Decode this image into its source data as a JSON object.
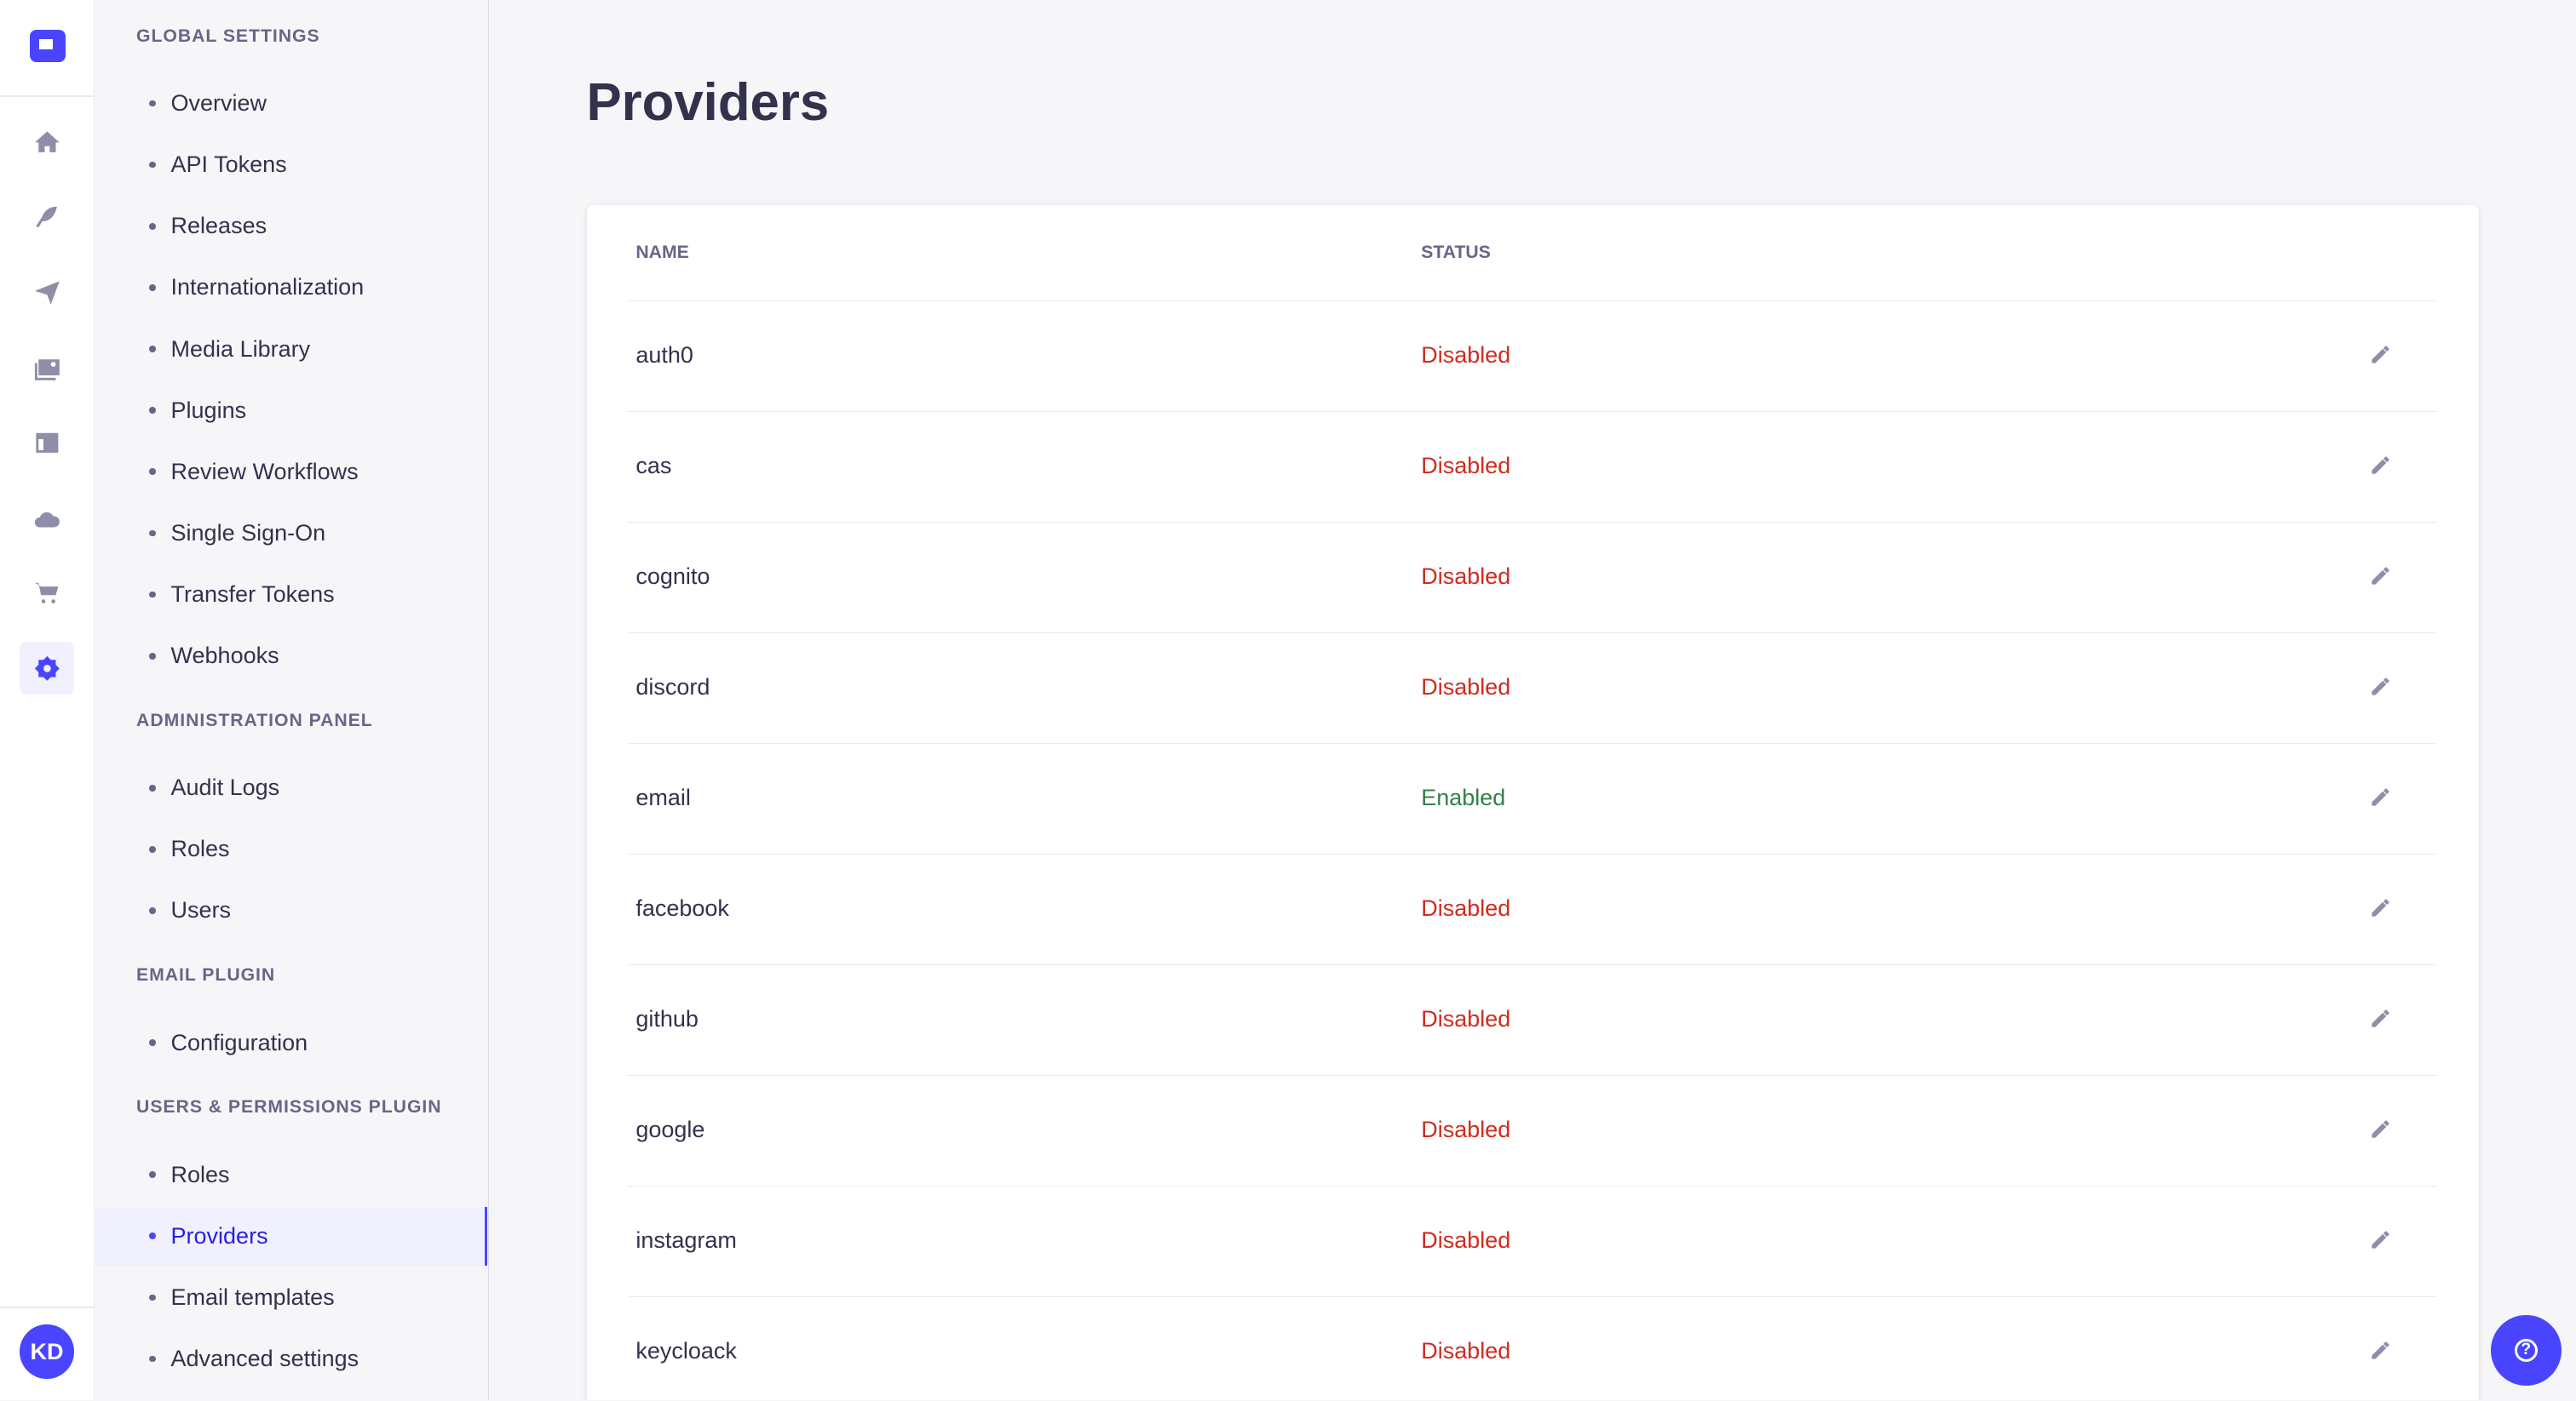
{
  "rail": {
    "avatar_initials": "KD",
    "icons": [
      "home-icon",
      "feather-icon",
      "paper-plane-icon",
      "images-icon",
      "layout-icon",
      "cloud-icon",
      "cart-icon",
      "gear-icon"
    ],
    "active": "gear-icon"
  },
  "subnav": {
    "sections": [
      {
        "title": "GLOBAL SETTINGS",
        "items": [
          "Overview",
          "API Tokens",
          "Releases",
          "Internationalization",
          "Media Library",
          "Plugins",
          "Review Workflows",
          "Single Sign-On",
          "Transfer Tokens",
          "Webhooks"
        ]
      },
      {
        "title": "ADMINISTRATION PANEL",
        "items": [
          "Audit Logs",
          "Roles",
          "Users"
        ]
      },
      {
        "title": "EMAIL PLUGIN",
        "items": [
          "Configuration"
        ]
      },
      {
        "title": "USERS & PERMISSIONS PLUGIN",
        "items": [
          "Roles",
          "Providers",
          "Email templates",
          "Advanced settings"
        ]
      }
    ],
    "active_item": "Providers"
  },
  "page": {
    "title": "Providers"
  },
  "table": {
    "headers": {
      "name": "NAME",
      "status": "STATUS"
    },
    "rows": [
      {
        "name": "auth0",
        "status": "Disabled"
      },
      {
        "name": "cas",
        "status": "Disabled"
      },
      {
        "name": "cognito",
        "status": "Disabled"
      },
      {
        "name": "discord",
        "status": "Disabled"
      },
      {
        "name": "email",
        "status": "Enabled"
      },
      {
        "name": "facebook",
        "status": "Disabled"
      },
      {
        "name": "github",
        "status": "Disabled"
      },
      {
        "name": "google",
        "status": "Disabled"
      },
      {
        "name": "instagram",
        "status": "Disabled"
      },
      {
        "name": "keycloack",
        "status": "Disabled"
      }
    ]
  },
  "colors": {
    "accent": "#4945ff",
    "disabled": "#d02b20",
    "enabled": "#328048"
  }
}
